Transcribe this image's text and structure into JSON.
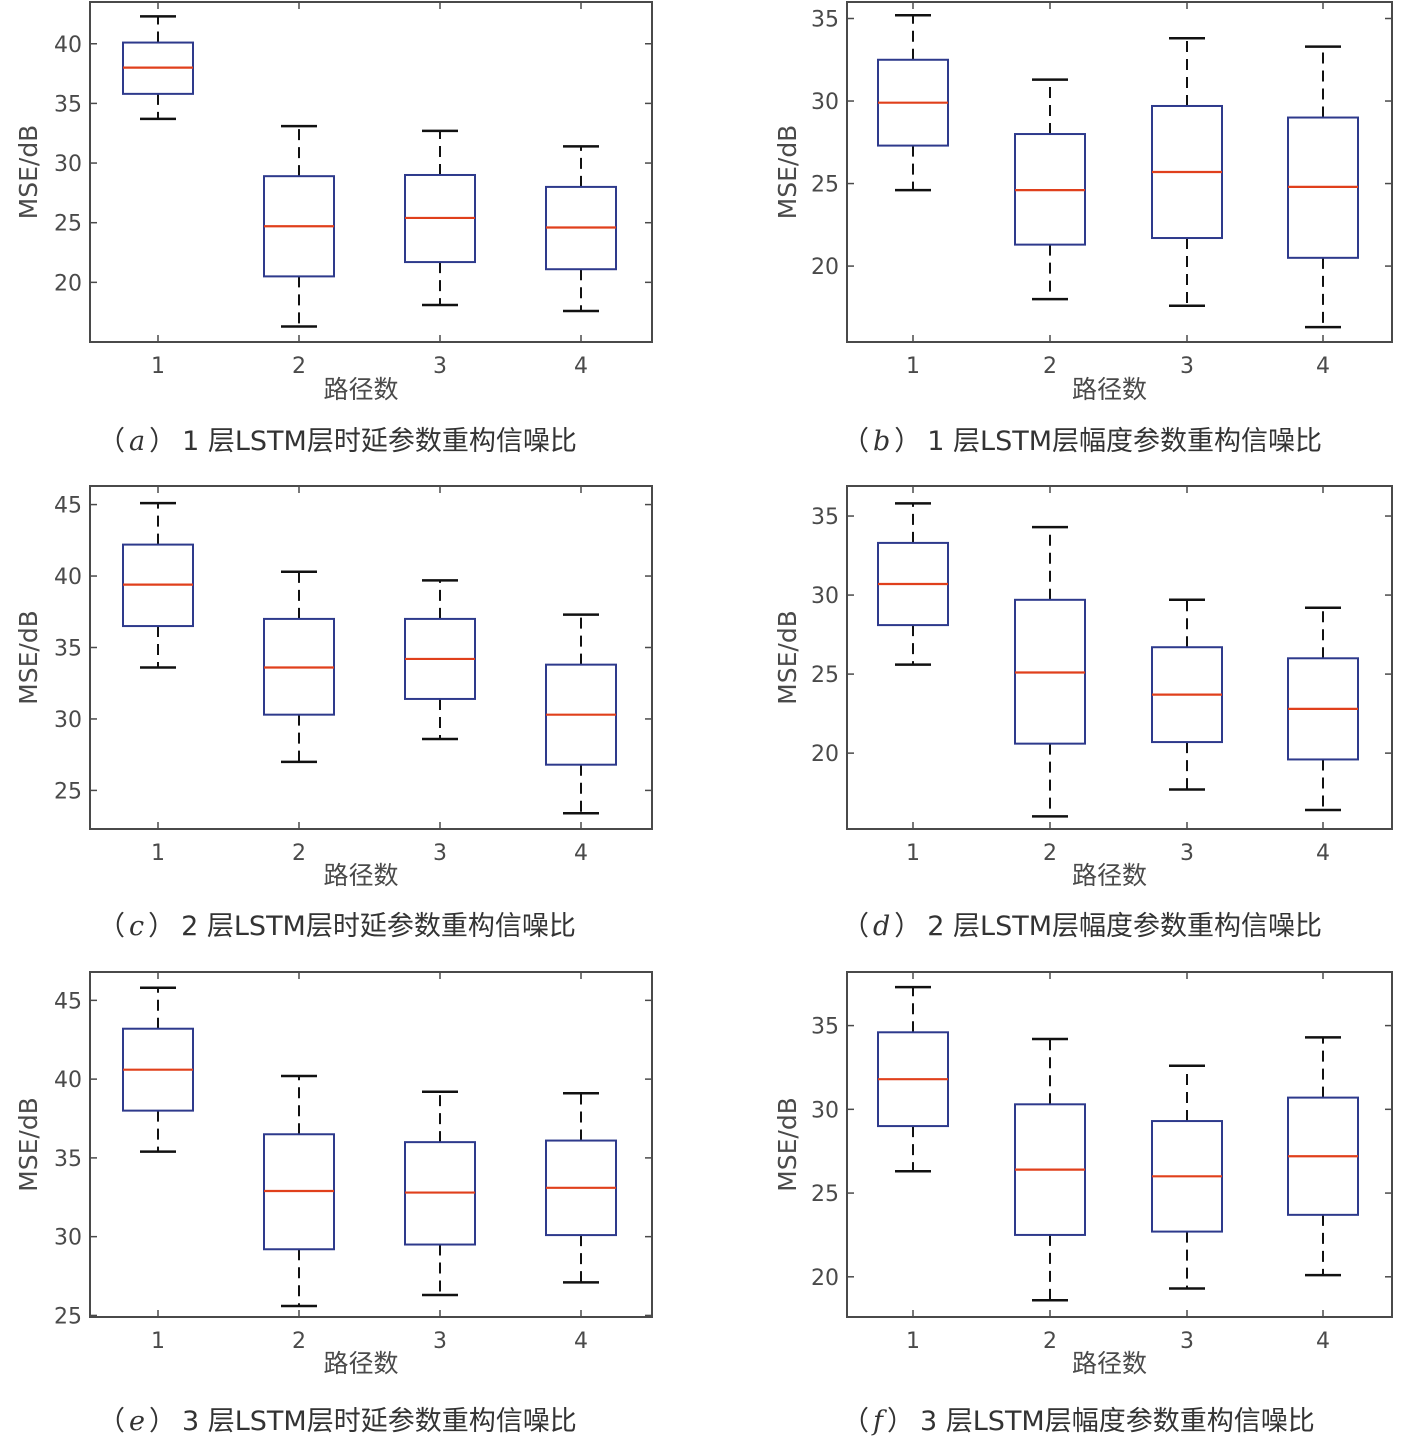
{
  "colors": {
    "box": "#2e3a8c",
    "median": "#e0401c",
    "whisker": "#111111",
    "axis": "#4a4a4a"
  },
  "chart_data": [
    {
      "id": "a",
      "type": "box",
      "caption": {
        "open": "（",
        "letter": "a",
        "close": "）",
        "text": "1 层LSTM层时延参数重构信噪比"
      },
      "xlabel": "路径数",
      "ylabel": "MSE/dB",
      "categories": [
        "1",
        "2",
        "3",
        "4"
      ],
      "yticks": [
        20,
        25,
        30,
        35,
        40
      ],
      "ylim": [
        15,
        43.5
      ],
      "boxes": [
        {
          "min": 33.7,
          "q1": 35.8,
          "median": 38.0,
          "q3": 40.1,
          "max": 42.3
        },
        {
          "min": 16.3,
          "q1": 20.5,
          "median": 24.7,
          "q3": 28.9,
          "max": 33.1
        },
        {
          "min": 18.1,
          "q1": 21.7,
          "median": 25.4,
          "q3": 29.0,
          "max": 32.7
        },
        {
          "min": 17.6,
          "q1": 21.1,
          "median": 24.6,
          "q3": 28.0,
          "max": 31.4
        }
      ]
    },
    {
      "id": "b",
      "type": "box",
      "caption": {
        "open": "（",
        "letter": "b",
        "close": "）",
        "text": "1 层LSTM层幅度参数重构信噪比"
      },
      "xlabel": "路径数",
      "ylabel": "MSE/dB",
      "categories": [
        "1",
        "2",
        "3",
        "4"
      ],
      "yticks": [
        20,
        25,
        30,
        35
      ],
      "ylim": [
        15.4,
        36.0
      ],
      "boxes": [
        {
          "min": 24.6,
          "q1": 27.3,
          "median": 29.9,
          "q3": 32.5,
          "max": 35.2
        },
        {
          "min": 18.0,
          "q1": 21.3,
          "median": 24.6,
          "q3": 28.0,
          "max": 31.3
        },
        {
          "min": 17.6,
          "q1": 21.7,
          "median": 25.7,
          "q3": 29.7,
          "max": 33.8
        },
        {
          "min": 16.3,
          "q1": 20.5,
          "median": 24.8,
          "q3": 29.0,
          "max": 33.3
        }
      ]
    },
    {
      "id": "c",
      "type": "box",
      "caption": {
        "open": "（",
        "letter": "c",
        "close": "）",
        "text": "2 层LSTM层时延参数重构信噪比"
      },
      "xlabel": "路径数",
      "ylabel": "MSE/dB",
      "categories": [
        "1",
        "2",
        "3",
        "4"
      ],
      "yticks": [
        25,
        30,
        35,
        40,
        45
      ],
      "ylim": [
        22.3,
        46.3
      ],
      "boxes": [
        {
          "min": 33.6,
          "q1": 36.5,
          "median": 39.4,
          "q3": 42.2,
          "max": 45.1
        },
        {
          "min": 27.0,
          "q1": 30.3,
          "median": 33.6,
          "q3": 37.0,
          "max": 40.3
        },
        {
          "min": 28.6,
          "q1": 31.4,
          "median": 34.2,
          "q3": 37.0,
          "max": 39.7
        },
        {
          "min": 23.4,
          "q1": 26.8,
          "median": 30.3,
          "q3": 33.8,
          "max": 37.3
        }
      ]
    },
    {
      "id": "d",
      "type": "box",
      "caption": {
        "open": "（",
        "letter": "d",
        "close": "）",
        "text": "2 层LSTM层幅度参数重构信噪比"
      },
      "xlabel": "路径数",
      "ylabel": "MSE/dB",
      "categories": [
        "1",
        "2",
        "3",
        "4"
      ],
      "yticks": [
        20,
        25,
        30,
        35
      ],
      "ylim": [
        15.2,
        36.9
      ],
      "boxes": [
        {
          "min": 25.6,
          "q1": 28.1,
          "median": 30.7,
          "q3": 33.3,
          "max": 35.8
        },
        {
          "min": 16.0,
          "q1": 20.6,
          "median": 25.1,
          "q3": 29.7,
          "max": 34.3
        },
        {
          "min": 17.7,
          "q1": 20.7,
          "median": 23.7,
          "q3": 26.7,
          "max": 29.7
        },
        {
          "min": 16.4,
          "q1": 19.6,
          "median": 22.8,
          "q3": 26.0,
          "max": 29.2
        }
      ]
    },
    {
      "id": "e",
      "type": "box",
      "caption": {
        "open": "（",
        "letter": "e",
        "close": "）",
        "text": "3 层LSTM层时延参数重构信噪比"
      },
      "xlabel": "路径数",
      "ylabel": "MSE/dB",
      "categories": [
        "1",
        "2",
        "3",
        "4"
      ],
      "yticks": [
        25,
        30,
        35,
        40,
        45
      ],
      "ylim": [
        24.9,
        46.8
      ],
      "boxes": [
        {
          "min": 35.4,
          "q1": 38.0,
          "median": 40.6,
          "q3": 43.2,
          "max": 45.8
        },
        {
          "min": 25.6,
          "q1": 29.2,
          "median": 32.9,
          "q3": 36.5,
          "max": 40.2
        },
        {
          "min": 26.3,
          "q1": 29.5,
          "median": 32.8,
          "q3": 36.0,
          "max": 39.2
        },
        {
          "min": 27.1,
          "q1": 30.1,
          "median": 33.1,
          "q3": 36.1,
          "max": 39.1
        }
      ]
    },
    {
      "id": "f",
      "type": "box",
      "caption": {
        "open": "（",
        "letter": "f",
        "close": "）",
        "text": "3 层LSTM层幅度参数重构信噪比"
      },
      "xlabel": "路径数",
      "ylabel": "MSE/dB",
      "categories": [
        "1",
        "2",
        "3",
        "4"
      ],
      "yticks": [
        20,
        25,
        30,
        35
      ],
      "ylim": [
        17.6,
        38.2
      ],
      "boxes": [
        {
          "min": 26.3,
          "q1": 29.0,
          "median": 31.8,
          "q3": 34.6,
          "max": 37.3
        },
        {
          "min": 18.6,
          "q1": 22.5,
          "median": 26.4,
          "q3": 30.3,
          "max": 34.2
        },
        {
          "min": 19.3,
          "q1": 22.7,
          "median": 26.0,
          "q3": 29.3,
          "max": 32.6
        },
        {
          "min": 20.1,
          "q1": 23.7,
          "median": 27.2,
          "q3": 30.7,
          "max": 34.3
        }
      ]
    }
  ]
}
